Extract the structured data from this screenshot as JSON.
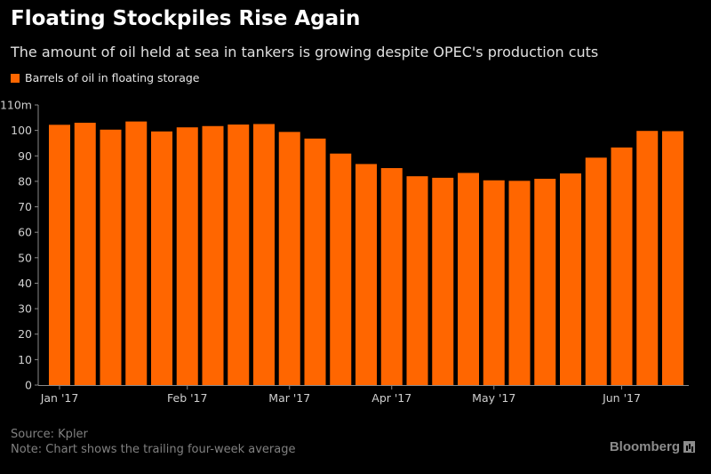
{
  "chart_data": {
    "type": "bar",
    "title": "Floating Stockpiles Rise Again",
    "subtitle": "The amount of oil held at sea in tankers is growing despite OPEC's production cuts",
    "legend": [
      {
        "name": "Barrels of oil in floating storage",
        "color": "#ff6600"
      }
    ],
    "legend_position": "top-left",
    "ylim": [
      0,
      110
    ],
    "y_ticks": [
      0,
      10,
      20,
      30,
      40,
      50,
      60,
      70,
      80,
      90,
      100,
      110
    ],
    "y_tick_labels": [
      "0",
      "10",
      "20",
      "30",
      "40",
      "50",
      "60",
      "70",
      "80",
      "90",
      "100",
      "110m"
    ],
    "x_ticks": [
      {
        "label": "Jan '17",
        "bar_index": 0
      },
      {
        "label": "Feb '17",
        "bar_index": 5
      },
      {
        "label": "Mar '17",
        "bar_index": 9
      },
      {
        "label": "Apr '17",
        "bar_index": 13
      },
      {
        "label": "May '17",
        "bar_index": 17
      },
      {
        "label": "Jun '17",
        "bar_index": 22
      }
    ],
    "grid": false,
    "series": [
      {
        "name": "Barrels of oil in floating storage",
        "color": "#ff6600",
        "values": [
          102.2,
          103.0,
          100.3,
          103.5,
          99.6,
          101.2,
          101.7,
          102.3,
          102.5,
          99.4,
          96.8,
          90.9,
          86.8,
          85.2,
          82.0,
          81.4,
          83.3,
          80.4,
          80.2,
          81.0,
          83.1,
          89.3,
          93.3,
          99.8,
          99.7
        ]
      }
    ],
    "source": "Source: Kpler",
    "note": "Note: Chart shows the trailing four-week average"
  },
  "brand": "Bloomberg"
}
